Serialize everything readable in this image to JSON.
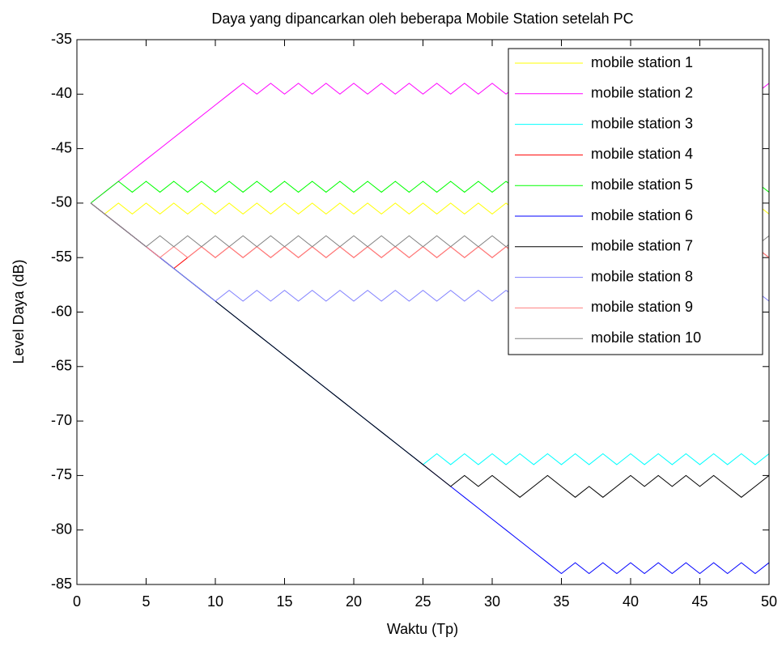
{
  "chart_data": {
    "type": "line",
    "title": "Daya yang dipancarkan oleh beberapa Mobile Station setelah PC",
    "x_label": "Waktu (Tp)",
    "y_label": "Level Daya (dB)",
    "x": [
      1,
      2,
      3,
      4,
      5,
      6,
      7,
      8,
      9,
      10,
      11,
      12,
      13,
      14,
      15,
      16,
      17,
      18,
      19,
      20,
      21,
      22,
      23,
      24,
      25,
      26,
      27,
      28,
      29,
      30,
      31,
      32,
      33,
      34,
      35,
      36,
      37,
      38,
      39,
      40,
      41,
      42,
      43,
      44,
      45,
      46,
      47,
      48,
      49,
      50
    ],
    "xlim": [
      0,
      50
    ],
    "xticks": [
      0,
      5,
      10,
      15,
      20,
      25,
      30,
      35,
      40,
      45,
      50
    ],
    "ylim": [
      -85,
      -35
    ],
    "yticks": [
      -85,
      -80,
      -75,
      -70,
      -65,
      -60,
      -55,
      -50,
      -45,
      -40,
      -35
    ],
    "legend_position": "upper right",
    "series": [
      {
        "name": "mobile station 1",
        "color": "#ffff00",
        "values": [
          -50,
          -51,
          -50,
          -51,
          -50,
          -51,
          -50,
          -51,
          -50,
          -51,
          -50,
          -51,
          -50,
          -51,
          -50,
          -51,
          -50,
          -51,
          -50,
          -51,
          -50,
          -51,
          -50,
          -51,
          -50,
          -51,
          -50,
          -51,
          -50,
          -51,
          -50,
          -51,
          -50,
          -51,
          -50,
          -51,
          -50,
          -51,
          -50,
          -51,
          -50,
          -51,
          -50,
          -51,
          -50,
          -51,
          -50,
          -51,
          -50,
          -51
        ]
      },
      {
        "name": "mobile station 2",
        "color": "#ff00ff",
        "values": [
          -50,
          -49,
          -48,
          -47,
          -46,
          -45,
          -44,
          -43,
          -42,
          -41,
          -40,
          -39,
          -40,
          -39,
          -40,
          -39,
          -40,
          -39,
          -40,
          -39,
          -40,
          -39,
          -40,
          -39,
          -40,
          -39,
          -40,
          -39,
          -40,
          -39,
          -40,
          -39,
          -40,
          -39,
          -40,
          -39,
          -40,
          -39,
          -40,
          -39,
          -40,
          -39,
          -40,
          -39,
          -40,
          -39,
          -40,
          -39,
          -40,
          -39
        ]
      },
      {
        "name": "mobile station 3",
        "color": "#00ffff",
        "values": [
          -50,
          -51,
          -52,
          -53,
          -54,
          -55,
          -56,
          -57,
          -58,
          -59,
          -60,
          -61,
          -62,
          -63,
          -64,
          -65,
          -66,
          -67,
          -68,
          -69,
          -70,
          -71,
          -72,
          -73,
          -74,
          -73,
          -74,
          -73,
          -74,
          -73,
          -74,
          -73,
          -74,
          -73,
          -74,
          -73,
          -74,
          -73,
          -74,
          -73,
          -74,
          -73,
          -74,
          -73,
          -74,
          -73,
          -74,
          -73,
          -74,
          -73
        ]
      },
      {
        "name": "mobile station 4",
        "color": "#ff0000",
        "values": [
          -50,
          -51,
          -52,
          -53,
          -54,
          -55,
          -56,
          -55,
          -54,
          -55,
          -54,
          -55,
          -54,
          -55,
          -54,
          -55,
          -54,
          -55,
          -54,
          -55,
          -54,
          -55,
          -54,
          -55,
          -54,
          -55,
          -54,
          -55,
          -54,
          -55,
          -54,
          -55,
          -54,
          -55,
          -54,
          -55,
          -54,
          -55,
          -54,
          -55,
          -54,
          -55,
          -54,
          -55,
          -54,
          -55,
          -54,
          -55,
          -54,
          -55
        ]
      },
      {
        "name": "mobile station 5",
        "color": "#00ff00",
        "values": [
          -50,
          -49,
          -48,
          -49,
          -48,
          -49,
          -48,
          -49,
          -48,
          -49,
          -48,
          -49,
          -48,
          -49,
          -48,
          -49,
          -48,
          -49,
          -48,
          -49,
          -48,
          -49,
          -48,
          -49,
          -48,
          -49,
          -48,
          -49,
          -48,
          -49,
          -48,
          -49,
          -48,
          -49,
          -48,
          -49,
          -48,
          -49,
          -48,
          -49,
          -48,
          -49,
          -48,
          -49,
          -48,
          -49,
          -48,
          -49,
          -48,
          -49
        ]
      },
      {
        "name": "mobile station 6",
        "color": "#0000ff",
        "values": [
          -50,
          -51,
          -52,
          -53,
          -54,
          -55,
          -56,
          -57,
          -58,
          -59,
          -60,
          -61,
          -62,
          -63,
          -64,
          -65,
          -66,
          -67,
          -68,
          -69,
          -70,
          -71,
          -72,
          -73,
          -74,
          -75,
          -76,
          -77,
          -78,
          -79,
          -80,
          -81,
          -82,
          -83,
          -84,
          -83,
          -84,
          -83,
          -84,
          -83,
          -84,
          -83,
          -84,
          -83,
          -84,
          -83,
          -84,
          -83,
          -84,
          -83
        ]
      },
      {
        "name": "mobile station 7",
        "color": "#000000",
        "values": [
          -50,
          -51,
          -52,
          -53,
          -54,
          -55,
          -56,
          -57,
          -58,
          -59,
          -60,
          -61,
          -62,
          -63,
          -64,
          -65,
          -66,
          -67,
          -68,
          -69,
          -70,
          -71,
          -72,
          -73,
          -74,
          -75,
          -76,
          -75,
          -76,
          -75,
          -76,
          -77,
          -76,
          -75,
          -76,
          -77,
          -76,
          -77,
          -76,
          -75,
          -76,
          -75,
          -76,
          -75,
          -76,
          -75,
          -76,
          -77,
          -76,
          -75
        ]
      },
      {
        "name": "mobile station 8",
        "color": "#8080ff",
        "values": [
          -50,
          -51,
          -52,
          -53,
          -54,
          -55,
          -56,
          -57,
          -58,
          -59,
          -58,
          -59,
          -58,
          -59,
          -58,
          -59,
          -58,
          -59,
          -58,
          -59,
          -58,
          -59,
          -58,
          -59,
          -58,
          -59,
          -58,
          -59,
          -58,
          -59,
          -58,
          -59,
          -58,
          -59,
          -58,
          -59,
          -58,
          -59,
          -58,
          -59,
          -58,
          -59,
          -58,
          -59,
          -58,
          -59,
          -58,
          -59,
          -58,
          -59
        ]
      },
      {
        "name": "mobile station 9",
        "color": "#ff8080",
        "values": [
          -50,
          -51,
          -52,
          -53,
          -54,
          -55,
          -54,
          -55,
          -54,
          -55,
          -54,
          -55,
          -54,
          -55,
          -54,
          -55,
          -54,
          -55,
          -54,
          -55,
          -54,
          -55,
          -54,
          -55,
          -54,
          -55,
          -54,
          -55,
          -54,
          -55,
          -54,
          -55,
          -54,
          -55,
          -54,
          -55,
          -54,
          -55,
          -54,
          -55,
          -54,
          -55,
          -54,
          -55,
          -54,
          -55,
          -54,
          -55,
          -54,
          -55
        ]
      },
      {
        "name": "mobile station 10",
        "color": "#808080",
        "values": [
          -50,
          -51,
          -52,
          -53,
          -54,
          -53,
          -54,
          -53,
          -54,
          -53,
          -54,
          -53,
          -54,
          -53,
          -54,
          -53,
          -54,
          -53,
          -54,
          -53,
          -54,
          -53,
          -54,
          -53,
          -54,
          -53,
          -54,
          -53,
          -54,
          -53,
          -54,
          -53,
          -54,
          -53,
          -54,
          -53,
          -54,
          -53,
          -54,
          -53,
          -54,
          -53,
          -54,
          -53,
          -54,
          -53,
          -54,
          -53,
          -54,
          -53
        ]
      }
    ]
  }
}
